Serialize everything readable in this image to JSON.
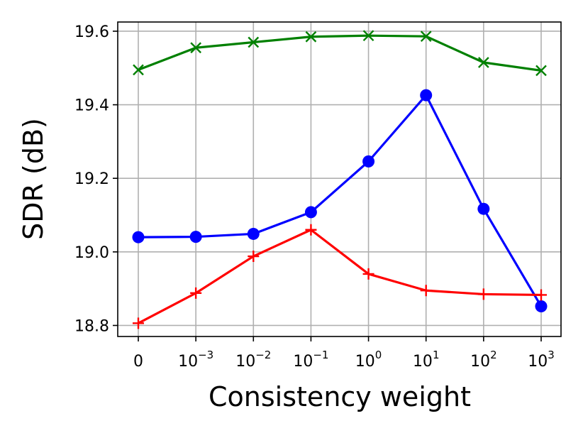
{
  "chart_data": {
    "type": "line",
    "xlabel": "Consistency weight",
    "ylabel": "SDR (dB)",
    "categories": [
      {
        "base": "0",
        "exp": ""
      },
      {
        "base": "10",
        "exp": "−3"
      },
      {
        "base": "10",
        "exp": "−2"
      },
      {
        "base": "10",
        "exp": "−1"
      },
      {
        "base": "10",
        "exp": "0"
      },
      {
        "base": "10",
        "exp": "1"
      },
      {
        "base": "10",
        "exp": "2"
      },
      {
        "base": "10",
        "exp": "3"
      }
    ],
    "ylim": [
      18.77,
      19.625
    ],
    "yticks": [
      "18.8",
      "19.0",
      "19.2",
      "19.4",
      "19.6"
    ],
    "grid": true,
    "series": [
      {
        "color": "#008000",
        "marker": "x",
        "values": [
          19.495,
          19.555,
          19.57,
          19.585,
          19.588,
          19.586,
          19.515,
          19.493
        ]
      },
      {
        "color": "#0000ff",
        "marker": "circle",
        "values": [
          19.04,
          19.041,
          19.049,
          19.108,
          19.246,
          19.426,
          19.117,
          18.852
        ]
      },
      {
        "color": "#ff0000",
        "marker": "plus",
        "values": [
          18.806,
          18.888,
          18.988,
          19.06,
          18.94,
          18.895,
          18.885,
          18.883
        ]
      }
    ]
  }
}
